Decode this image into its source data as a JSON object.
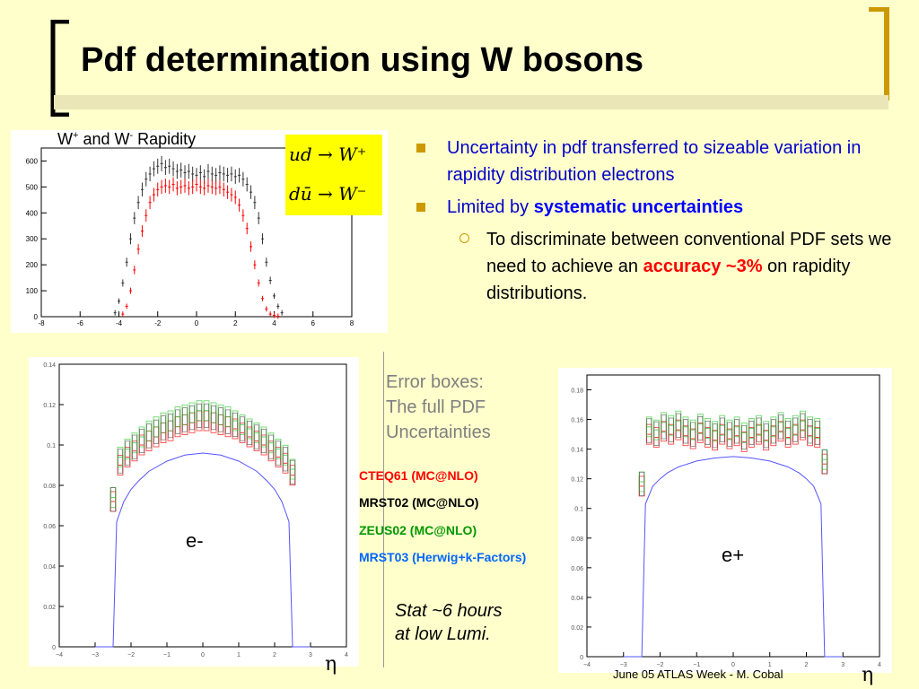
{
  "slide": {
    "title": "Pdf determination using W bosons",
    "footer": "June 05 ATLAS Week - M. Cobal"
  },
  "colors": {
    "background": "#ffffcc",
    "bracket": "#cc9900",
    "bullet": "#cc9900",
    "text_blue": "#0000cc",
    "highlight_red": "#ff0000",
    "formula_bg": "#ffff00",
    "series_black": "#333333",
    "series_red": "#ff0000",
    "series_green": "#33cc33",
    "hist_line": "#5555ff"
  },
  "bullets": [
    {
      "text": "Uncertainty in pdf transferred to sizeable variation in rapidity distribution electrons"
    },
    {
      "prefix": "Limited by ",
      "bold": "systematic uncertainties"
    }
  ],
  "sub_bullet": {
    "text_a": "To discriminate between conventional PDF sets we need to achieve  an ",
    "accent": "accuracy ~3%",
    "text_b": " on rapidity distributions."
  },
  "annotations": {
    "error_boxes": [
      "Error boxes:",
      "The full PDF",
      "Uncertainties"
    ],
    "stat": [
      "Stat  ~6 hours",
      "at low Lumi."
    ],
    "e_minus": "e-",
    "e_plus": "e+",
    "eta": "η"
  },
  "legend": [
    {
      "label": "CTEQ61 (MC@NLO)",
      "color": "#ff0000"
    },
    {
      "label": "MRST02 (MC@NLO)",
      "color": "#000000"
    },
    {
      "label": "ZEUS02 (MC@NLO)",
      "color": "#009900"
    },
    {
      "label": "MRST03 (Herwig+k-Factors)",
      "color": "#0066ff"
    }
  ],
  "formula": {
    "line1": "ud → W⁺",
    "line2": "dū → W⁻"
  },
  "chart_data": [
    {
      "type": "scatter",
      "title": "W+ and W- Rapidity",
      "title_parts": {
        "w1": "W",
        "sup1": "+",
        "mid": " and W",
        "sup2": "-",
        "end": " Rapidity"
      },
      "xlim": [
        -8,
        8
      ],
      "ylim": [
        0,
        650
      ],
      "xticks": [
        -8,
        -6,
        -4,
        -2,
        0,
        2,
        4,
        6,
        8
      ],
      "yticks": [
        0,
        100,
        200,
        300,
        400,
        500,
        600
      ],
      "series": [
        {
          "name": "W+",
          "color": "#333333",
          "x": [
            -4.2,
            -4.0,
            -3.8,
            -3.6,
            -3.4,
            -3.2,
            -3.0,
            -2.8,
            -2.6,
            -2.4,
            -2.2,
            -2.0,
            -1.8,
            -1.6,
            -1.4,
            -1.2,
            -1.0,
            -0.8,
            -0.6,
            -0.4,
            -0.2,
            0,
            0.2,
            0.4,
            0.6,
            0.8,
            1.0,
            1.2,
            1.4,
            1.6,
            1.8,
            2.0,
            2.2,
            2.4,
            2.6,
            2.8,
            3.0,
            3.2,
            3.4,
            3.6,
            3.8,
            4.0,
            4.2,
            4.4
          ],
          "y": [
            15,
            60,
            130,
            210,
            300,
            380,
            440,
            490,
            530,
            550,
            570,
            580,
            590,
            575,
            580,
            570,
            560,
            565,
            555,
            560,
            550,
            545,
            555,
            540,
            560,
            550,
            545,
            555,
            550,
            545,
            550,
            540,
            545,
            530,
            510,
            480,
            440,
            380,
            300,
            210,
            140,
            80,
            40,
            15
          ]
        },
        {
          "name": "W-",
          "color": "#ff0000",
          "x": [
            -3.8,
            -3.6,
            -3.4,
            -3.2,
            -3.0,
            -2.8,
            -2.6,
            -2.4,
            -2.2,
            -2.0,
            -1.8,
            -1.6,
            -1.4,
            -1.2,
            -1.0,
            -0.8,
            -0.6,
            -0.4,
            -0.2,
            0,
            0.2,
            0.4,
            0.6,
            0.8,
            1.0,
            1.2,
            1.4,
            1.6,
            1.8,
            2.0,
            2.2,
            2.4,
            2.6,
            2.8,
            3.0,
            3.2,
            3.4,
            3.6,
            3.8,
            4.0,
            4.2
          ],
          "y": [
            10,
            40,
            100,
            180,
            260,
            330,
            390,
            440,
            470,
            490,
            500,
            505,
            500,
            510,
            495,
            500,
            505,
            495,
            500,
            510,
            500,
            495,
            505,
            500,
            495,
            500,
            490,
            480,
            470,
            460,
            430,
            390,
            340,
            270,
            200,
            130,
            70,
            30,
            10,
            5,
            2
          ]
        }
      ]
    },
    {
      "type": "scatter",
      "title": "e-",
      "xlabel": "η",
      "xlim": [
        -4,
        4
      ],
      "ylim": [
        0,
        0.14
      ],
      "xticks": [
        -4,
        -3,
        -2,
        -1,
        0,
        1,
        2,
        3,
        4
      ],
      "yticks": [
        0,
        0.02,
        0.04,
        0.06,
        0.08,
        0.1,
        0.12,
        0.14
      ],
      "series": [
        {
          "name": "CTEQ61 (MC@NLO)",
          "color": "#ff0000",
          "x": [
            -2.5,
            -2.3,
            -2.1,
            -1.9,
            -1.7,
            -1.5,
            -1.3,
            -1.1,
            -0.9,
            -0.7,
            -0.5,
            -0.3,
            -0.1,
            0.1,
            0.3,
            0.5,
            0.7,
            0.9,
            1.1,
            1.3,
            1.5,
            1.7,
            1.9,
            2.1,
            2.3,
            2.5
          ],
          "y": [
            0.072,
            0.09,
            0.094,
            0.097,
            0.1,
            0.102,
            0.104,
            0.106,
            0.107,
            0.109,
            0.11,
            0.111,
            0.112,
            0.112,
            0.111,
            0.11,
            0.109,
            0.108,
            0.106,
            0.104,
            0.102,
            0.1,
            0.097,
            0.094,
            0.091,
            0.085
          ]
        },
        {
          "name": "ZEUS02 (MC@NLO)",
          "color": "#33cc33",
          "x": [
            -2.5,
            -2.3,
            -2.1,
            -1.9,
            -1.7,
            -1.5,
            -1.3,
            -1.1,
            -0.9,
            -0.7,
            -0.5,
            -0.3,
            -0.1,
            0.1,
            0.3,
            0.5,
            0.7,
            0.9,
            1.1,
            1.3,
            1.5,
            1.7,
            1.9,
            2.1,
            2.3,
            2.5
          ],
          "y": [
            0.074,
            0.094,
            0.098,
            0.101,
            0.104,
            0.107,
            0.109,
            0.111,
            0.112,
            0.114,
            0.115,
            0.116,
            0.117,
            0.117,
            0.116,
            0.115,
            0.114,
            0.112,
            0.11,
            0.108,
            0.106,
            0.104,
            0.101,
            0.098,
            0.095,
            0.088
          ]
        },
        {
          "name": "MRST03 (Herwig+k-Factors)",
          "color": "#5555ff",
          "x": [
            -3.0,
            -2.5,
            -2.4,
            -2.2,
            -2.0,
            -1.8,
            -1.5,
            -1.0,
            -0.5,
            0,
            0.5,
            1.0,
            1.5,
            1.8,
            2.0,
            2.2,
            2.4,
            2.5,
            3.0
          ],
          "y": [
            0,
            0,
            0.062,
            0.072,
            0.078,
            0.082,
            0.087,
            0.092,
            0.095,
            0.096,
            0.095,
            0.092,
            0.087,
            0.082,
            0.078,
            0.072,
            0.062,
            0,
            0
          ]
        }
      ]
    },
    {
      "type": "scatter",
      "title": "e+",
      "xlabel": "η",
      "xlim": [
        -4,
        4
      ],
      "ylim": [
        0,
        0.19
      ],
      "xticks": [
        -4,
        -3,
        -2,
        -1,
        0,
        1,
        2,
        3,
        4
      ],
      "yticks": [
        0,
        0.02,
        0.04,
        0.06,
        0.08,
        0.1,
        0.12,
        0.14,
        0.16,
        0.18
      ],
      "series": [
        {
          "name": "CTEQ61 (MC@NLO)",
          "color": "#ff0000",
          "x": [
            -2.5,
            -2.3,
            -2.1,
            -1.9,
            -1.7,
            -1.5,
            -1.3,
            -1.1,
            -0.9,
            -0.7,
            -0.5,
            -0.3,
            -0.1,
            0.1,
            0.3,
            0.5,
            0.7,
            0.9,
            1.1,
            1.3,
            1.5,
            1.7,
            1.9,
            2.1,
            2.3,
            2.5
          ],
          "y": [
            0.115,
            0.15,
            0.148,
            0.152,
            0.15,
            0.153,
            0.149,
            0.147,
            0.151,
            0.148,
            0.146,
            0.15,
            0.147,
            0.149,
            0.145,
            0.148,
            0.15,
            0.146,
            0.149,
            0.152,
            0.148,
            0.15,
            0.153,
            0.149,
            0.148,
            0.13
          ]
        },
        {
          "name": "ZEUS02 (MC@NLO)",
          "color": "#33cc33",
          "x": [
            -2.5,
            -2.3,
            -2.1,
            -1.9,
            -1.7,
            -1.5,
            -1.3,
            -1.1,
            -0.9,
            -0.7,
            -0.5,
            -0.3,
            -0.1,
            0.1,
            0.3,
            0.5,
            0.7,
            0.9,
            1.1,
            1.3,
            1.5,
            1.7,
            1.9,
            2.1,
            2.3,
            2.5
          ],
          "y": [
            0.118,
            0.155,
            0.153,
            0.158,
            0.156,
            0.159,
            0.155,
            0.153,
            0.157,
            0.154,
            0.152,
            0.156,
            0.153,
            0.155,
            0.151,
            0.154,
            0.156,
            0.152,
            0.155,
            0.158,
            0.154,
            0.156,
            0.159,
            0.155,
            0.154,
            0.133
          ]
        },
        {
          "name": "MRST03 (Herwig+k-Factors)",
          "color": "#5555ff",
          "x": [
            -3.0,
            -2.5,
            -2.4,
            -2.2,
            -2.0,
            -1.8,
            -1.5,
            -1.0,
            -0.5,
            0,
            0.5,
            1.0,
            1.5,
            1.8,
            2.0,
            2.2,
            2.4,
            2.5,
            3.0
          ],
          "y": [
            0,
            0,
            0.103,
            0.115,
            0.12,
            0.124,
            0.128,
            0.132,
            0.134,
            0.135,
            0.134,
            0.132,
            0.128,
            0.124,
            0.12,
            0.115,
            0.103,
            0,
            0
          ]
        }
      ]
    }
  ]
}
